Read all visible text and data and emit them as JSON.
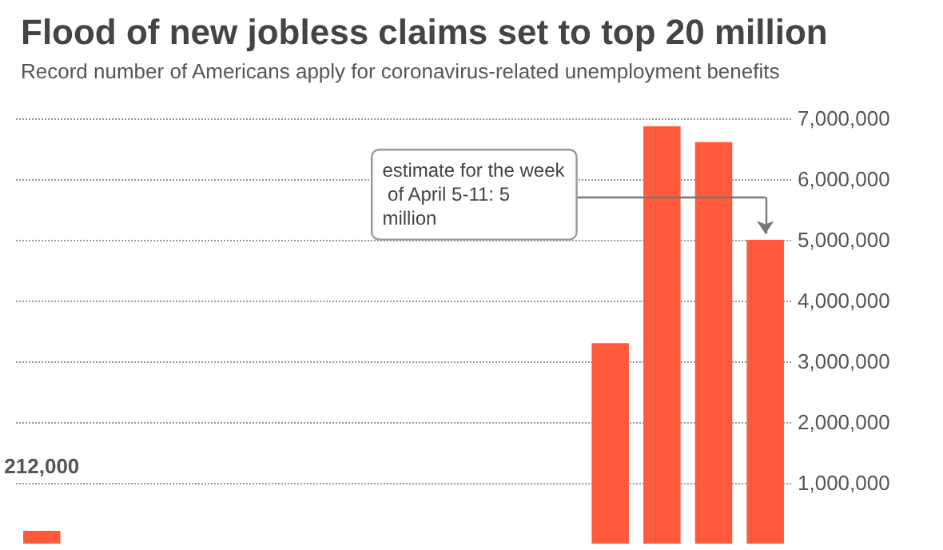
{
  "chart_data": {
    "type": "bar",
    "title": "Flood of new jobless claims set to top 20 million",
    "subtitle": "Record number of Americans apply for coronavirus-related unemployment benefits",
    "categories": [
      null,
      null,
      null,
      null,
      null,
      null,
      null,
      null,
      null,
      null,
      null,
      null,
      null,
      null,
      null
    ],
    "values": [
      212000,
      null,
      null,
      null,
      null,
      null,
      null,
      null,
      null,
      null,
      null,
      3300000,
      6870000,
      6610000,
      5000000
    ],
    "value_labels": [
      "212,000",
      null,
      null,
      null,
      null,
      null,
      null,
      null,
      null,
      null,
      null,
      null,
      null,
      null,
      null
    ],
    "color": "#ff5a3c",
    "ylim": [
      0,
      7000000
    ],
    "yticks": [
      {
        "value": 1000000,
        "label": "1,000,000"
      },
      {
        "value": 2000000,
        "label": "2,000,000"
      },
      {
        "value": 3000000,
        "label": "3,000,000"
      },
      {
        "value": 4000000,
        "label": "4,000,000"
      },
      {
        "value": 5000000,
        "label": "5,000,000"
      },
      {
        "value": 6000000,
        "label": "6,000,000"
      },
      {
        "value": 7000000,
        "label": "7,000,000"
      }
    ],
    "tick_labels": "y",
    "grid": "y",
    "annotations": [
      "estimate for the week of April 5-11: 5 million"
    ]
  }
}
